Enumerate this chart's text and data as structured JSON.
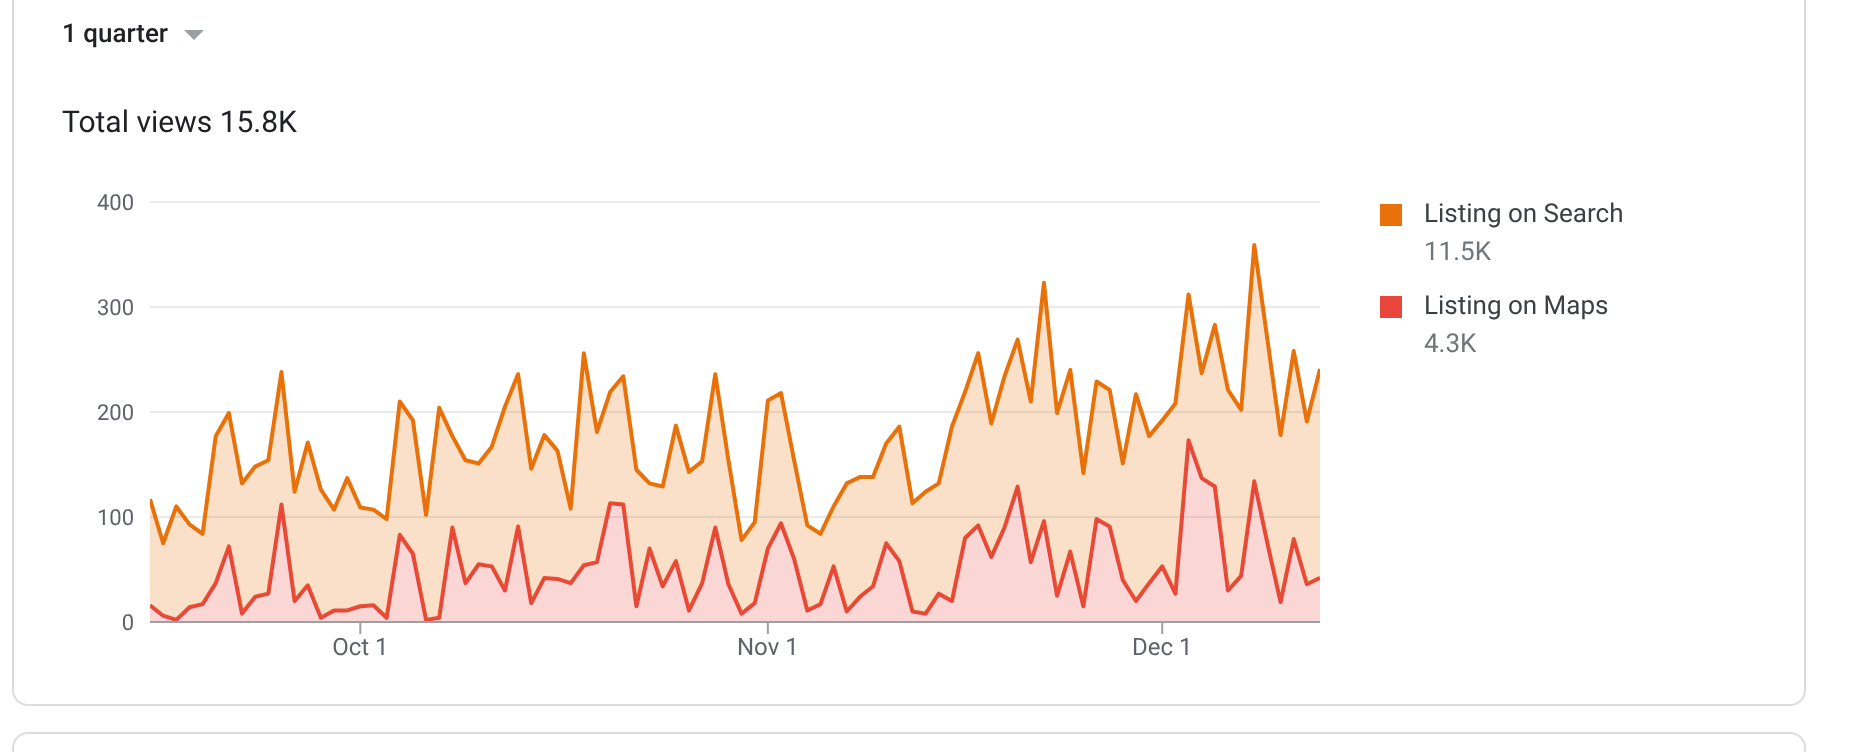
{
  "chart_data": {
    "type": "area",
    "title": "Total views 15.8K",
    "stacked": true,
    "annotations": [
      "1 quarter",
      "11.5K",
      "4.3K"
    ],
    "x": [
      "--09-15",
      "--09-16",
      "--09-17",
      "--09-18",
      "--09-19",
      "--09-20",
      "--09-21",
      "--09-22",
      "--09-23",
      "--09-24",
      "--09-25",
      "--09-26",
      "--09-27",
      "--09-28",
      "--09-29",
      "--09-30",
      "--10-01",
      "--10-02",
      "--10-03",
      "--10-04",
      "--10-05",
      "--10-06",
      "--10-07",
      "--10-08",
      "--10-09",
      "--10-10",
      "--10-11",
      "--10-12",
      "--10-13",
      "--10-14",
      "--10-15",
      "--10-16",
      "--10-17",
      "--10-18",
      "--10-19",
      "--10-20",
      "--10-21",
      "--10-22",
      "--10-23",
      "--10-24",
      "--10-25",
      "--10-26",
      "--10-27",
      "--10-28",
      "--10-29",
      "--10-30",
      "--10-31",
      "--11-01",
      "--11-02",
      "--11-03",
      "--11-04",
      "--11-05",
      "--11-06",
      "--11-07",
      "--11-08",
      "--11-09",
      "--11-10",
      "--11-11",
      "--11-12",
      "--11-13",
      "--11-14",
      "--11-15",
      "--11-16",
      "--11-17",
      "--11-18",
      "--11-19",
      "--11-20",
      "--11-21",
      "--11-22",
      "--11-23",
      "--11-24",
      "--11-25",
      "--11-26",
      "--11-27",
      "--11-28",
      "--11-29",
      "--11-30",
      "--12-01",
      "--12-02",
      "--12-03",
      "--12-04",
      "--12-05",
      "--12-06",
      "--12-07",
      "--12-08",
      "--12-09",
      "--12-10",
      "--12-11",
      "--12-12",
      "--12-13"
    ],
    "series": [
      {
        "name": "Listing on Maps",
        "color": "#e8453c",
        "values": [
          16,
          6,
          2,
          14,
          17,
          37,
          72,
          8,
          24,
          27,
          112,
          20,
          35,
          4,
          11,
          11,
          15,
          16,
          4,
          83,
          65,
          2,
          4,
          90,
          37,
          55,
          53,
          30,
          91,
          18,
          42,
          41,
          37,
          54,
          57,
          113,
          112,
          15,
          70,
          34,
          58,
          11,
          37,
          90,
          36,
          8,
          18,
          70,
          94,
          60,
          11,
          17,
          53,
          10,
          24,
          34,
          75,
          58,
          10,
          8,
          27,
          20,
          80,
          92,
          62,
          90,
          129,
          57,
          96,
          25,
          67,
          15,
          98,
          91,
          40,
          20,
          37,
          53,
          27,
          173,
          137,
          129,
          30,
          44,
          134,
          75,
          19,
          79,
          36,
          42
        ]
      },
      {
        "name": "Listing on Search",
        "color": "#e8710a",
        "values": [
          101,
          69,
          108,
          79,
          67,
          140,
          127,
          124,
          124,
          127,
          126,
          104,
          136,
          122,
          96,
          126,
          94,
          91,
          94,
          127,
          127,
          100,
          200,
          87,
          117,
          96,
          114,
          175,
          145,
          128,
          136,
          122,
          71,
          202,
          124,
          106,
          122,
          130,
          62,
          95,
          129,
          132,
          116,
          146,
          118,
          70,
          77,
          141,
          124,
          94,
          81,
          67,
          57,
          122,
          114,
          104,
          95,
          128,
          103,
          116,
          105,
          166,
          139,
          164,
          127,
          144,
          140,
          153,
          227,
          174,
          173,
          127,
          131,
          130,
          111,
          197,
          140,
          139,
          181,
          139,
          100,
          154,
          191,
          158,
          225,
          194,
          159,
          179,
          155,
          199
        ]
      }
    ],
    "xlim": [
      "--09-15",
      "--12-13"
    ],
    "xticks": [
      {
        "value": "--10-01",
        "label": "Oct 1"
      },
      {
        "value": "--11-01",
        "label": "Nov 1"
      },
      {
        "value": "--12-01",
        "label": "Dec 1"
      }
    ],
    "ylim": [
      0,
      400
    ],
    "yticks": [
      0,
      100,
      200,
      300,
      400
    ],
    "grid": "y",
    "legend": "right",
    "marker": "none"
  }
}
